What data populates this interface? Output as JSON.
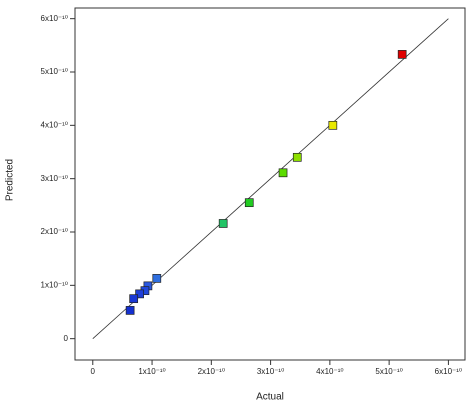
{
  "chart_data": {
    "type": "scatter",
    "x_label": "Actual",
    "y_label": "Predicted",
    "x": [
      5.22e-10,
      4.05e-10,
      3.45e-10,
      3.21e-10,
      2.64e-10,
      2.2e-10,
      1.08e-10,
      9.3e-11,
      8.8e-11,
      7.9e-11,
      6.9e-11,
      6.3e-11
    ],
    "values": [
      5.33e-10,
      4e-10,
      3.4e-10,
      3.11e-10,
      2.55e-10,
      2.16e-10,
      1.13e-10,
      9.9e-11,
      9e-11,
      8.4e-11,
      7.5e-11,
      5.3e-11
    ],
    "colors": [
      "#e00000",
      "#e8e800",
      "#8ee000",
      "#5cdc00",
      "#22cc22",
      "#22c466",
      "#2f6fe0",
      "#2a58e0",
      "#2048dc",
      "#2040d8",
      "#1a38d4",
      "#1430d0"
    ],
    "xlim": [
      -3e-11,
      6.28e-10
    ],
    "ylim": [
      -4e-11,
      6.2e-10
    ],
    "xticks": [
      0,
      {
        "value": 1e-10,
        "label": "1x10⁻¹⁰"
      },
      {
        "value": 2e-10,
        "label": "2x10⁻¹⁰"
      },
      {
        "value": 3e-10,
        "label": "3x10⁻¹⁰"
      },
      {
        "value": 4e-10,
        "label": "4x10⁻¹⁰"
      },
      {
        "value": 5e-10,
        "label": "5x10⁻¹⁰"
      },
      {
        "value": 6e-10,
        "label": "6x10⁻¹⁰"
      }
    ],
    "yticks": [
      0,
      {
        "value": 1e-10,
        "label": "1x10⁻¹⁰"
      },
      {
        "value": 2e-10,
        "label": "2x10⁻¹⁰"
      },
      {
        "value": 3e-10,
        "label": "3x10⁻¹⁰"
      },
      {
        "value": 4e-10,
        "label": "4x10⁻¹⁰"
      },
      {
        "value": 5e-10,
        "label": "5x10⁻¹⁰"
      },
      {
        "value": 6e-10,
        "label": "6x10⁻¹⁰"
      }
    ],
    "grid": false
  }
}
